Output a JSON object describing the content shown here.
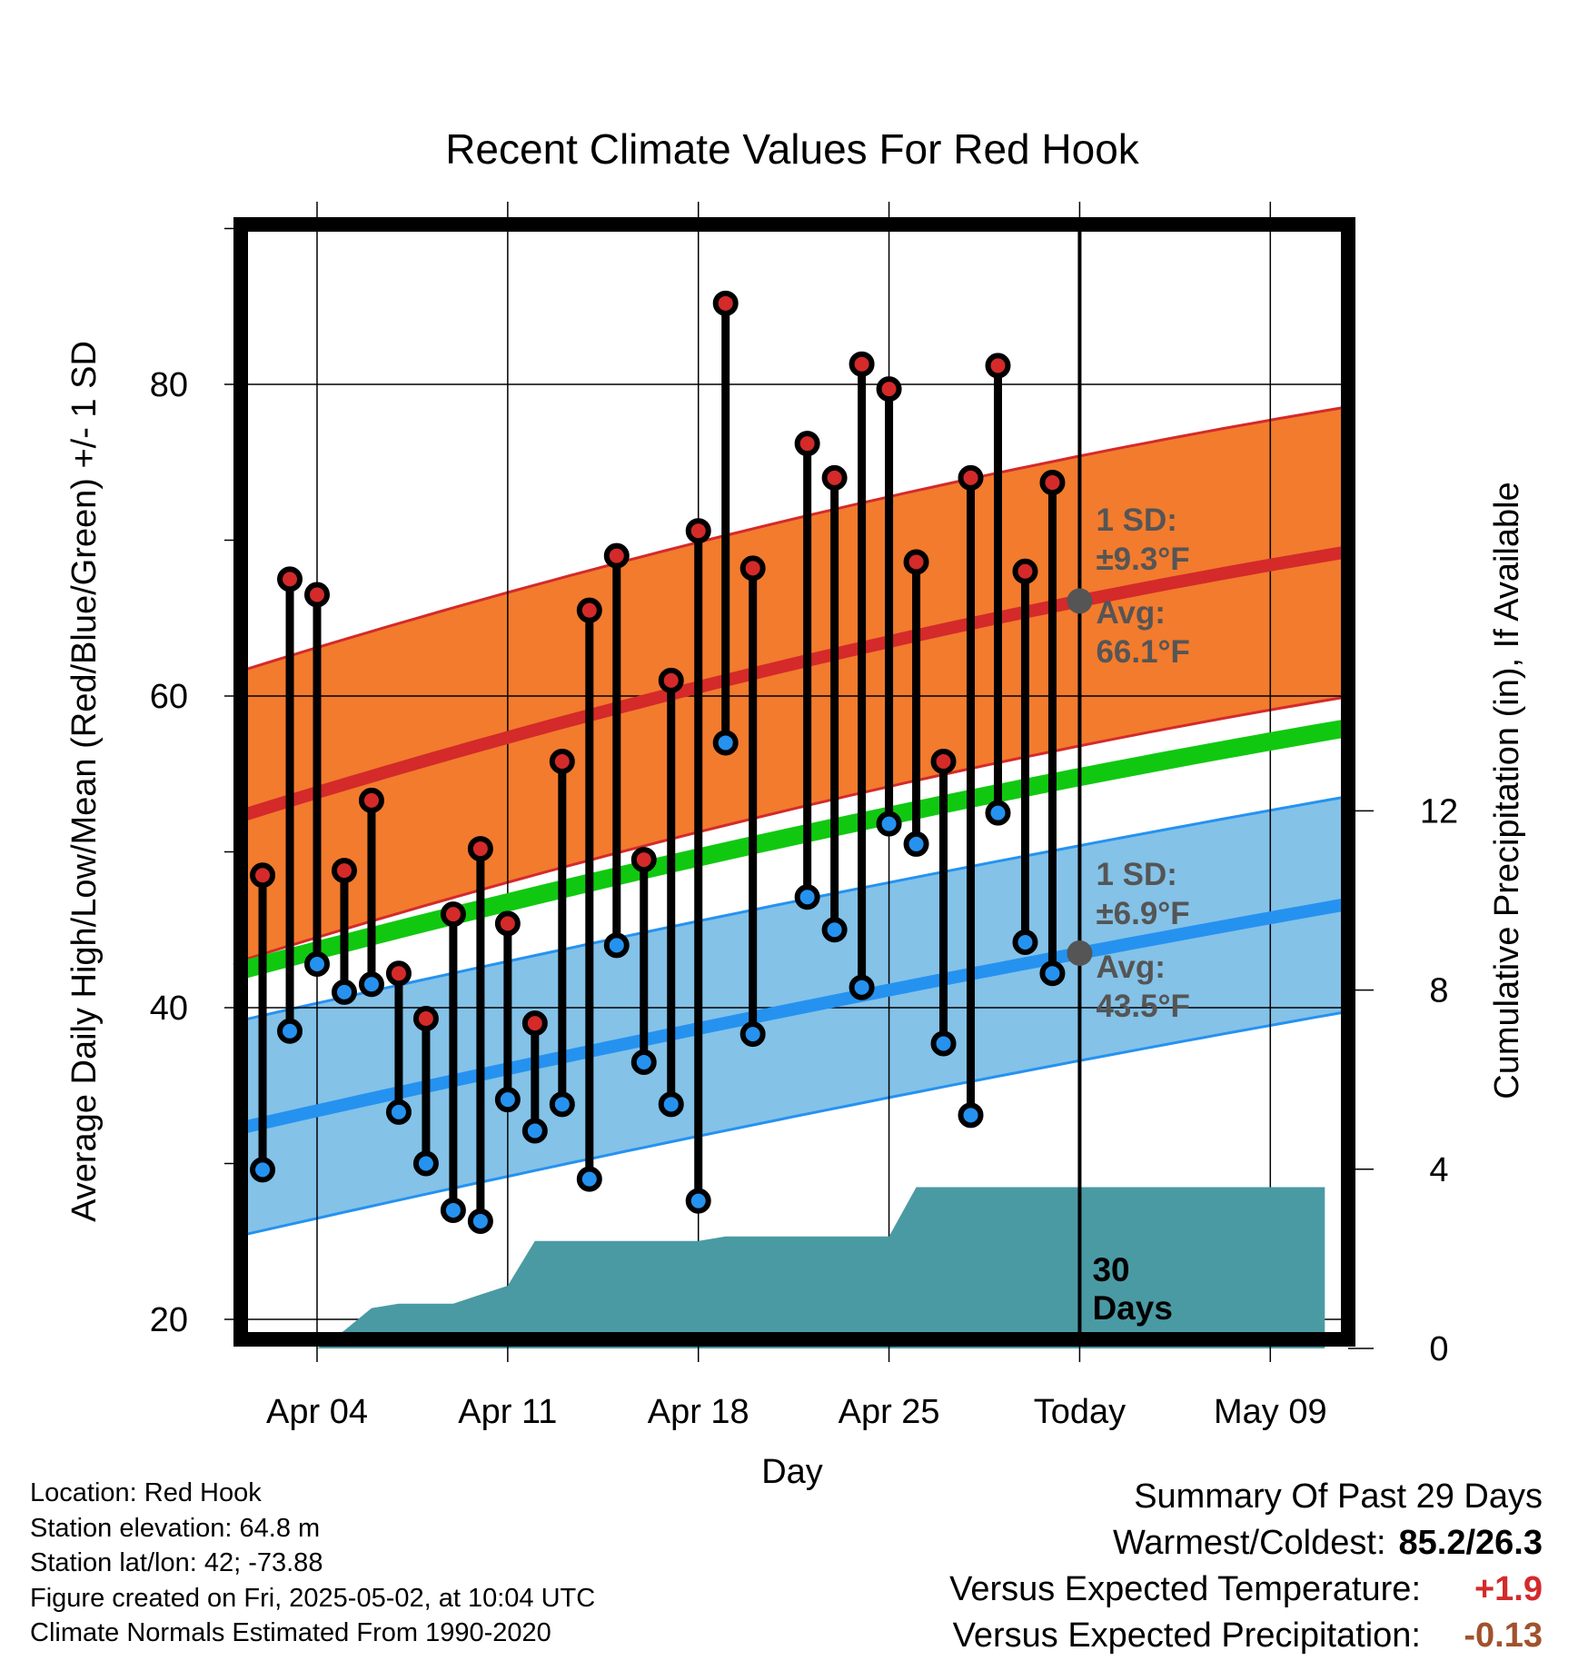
{
  "chart_data": {
    "type": "line",
    "title": "Recent Climate Values For Red Hook",
    "xlabel": "Day",
    "ylabel": "Average Daily High/Low/Mean (Red/Blue/Green) +/- 1 SD",
    "y2label": "Cumulative Precipitation (in), If Available",
    "ylim": [
      18,
      90
    ],
    "y2lim": [
      0,
      25
    ],
    "y_ticks": [
      20,
      40,
      60,
      80
    ],
    "y2_ticks": [
      0,
      4,
      8,
      12
    ],
    "x_ticks": [
      {
        "day": 4,
        "label": "Apr 04"
      },
      {
        "day": 11,
        "label": "Apr 11"
      },
      {
        "day": 18,
        "label": "Apr 18"
      },
      {
        "day": 25,
        "label": "Apr 25"
      },
      {
        "day": 32,
        "label": "Today"
      },
      {
        "day": 39,
        "label": "May 09"
      }
    ],
    "x_range": [
      1,
      42
    ],
    "grid": true,
    "today_day": 32,
    "today_label": [
      "30",
      "Days"
    ],
    "normals": {
      "high_avg": {
        "start": 52.2,
        "today": 66.1,
        "end": 69.3
      },
      "high_sd": 9.3,
      "low_avg": {
        "start": 32.2,
        "today": 43.5,
        "end": 46.7
      },
      "low_sd": 6.9,
      "mean_avg": {
        "start": 42.3,
        "today": 54.8,
        "end": 58.0
      }
    },
    "annotations": {
      "high": {
        "sd_title": "1 SD:",
        "sd_value": "±9.3°F",
        "avg_title": "Avg:",
        "avg_value": "66.1°F"
      },
      "low": {
        "sd_title": "1 SD:",
        "sd_value": "±6.9°F",
        "avg_title": "Avg:",
        "avg_value": "43.5°F"
      }
    },
    "daily": {
      "days": [
        2,
        3,
        4,
        5,
        6,
        7,
        8,
        9,
        10,
        11,
        12,
        13,
        14,
        15,
        16,
        17,
        18,
        19,
        20,
        22,
        23,
        24,
        25,
        26,
        27,
        28,
        29,
        30,
        31
      ],
      "highs": [
        48.5,
        67.5,
        66.5,
        48.8,
        53.3,
        42.2,
        39.3,
        46.0,
        50.2,
        45.4,
        39.0,
        55.8,
        65.5,
        69.0,
        49.5,
        61.0,
        70.6,
        85.2,
        68.2,
        76.2,
        74.0,
        81.3,
        79.7,
        68.6,
        55.8,
        74.0,
        81.2,
        68.0,
        73.7
      ],
      "lows": [
        29.6,
        38.5,
        42.8,
        41.0,
        41.5,
        33.3,
        30.0,
        27.0,
        26.3,
        34.1,
        32.1,
        33.8,
        29.0,
        44.0,
        36.5,
        33.8,
        27.6,
        57.0,
        38.3,
        47.1,
        45.0,
        41.3,
        51.8,
        50.5,
        37.7,
        33.1,
        52.5,
        44.2,
        42.2
      ]
    },
    "precip": {
      "days": [
        1,
        4,
        5,
        6,
        7,
        8,
        9,
        10,
        11,
        12,
        13,
        14,
        15,
        16,
        17,
        18,
        19,
        20,
        25,
        26,
        27,
        41
      ],
      "values": [
        0,
        0,
        0.4,
        0.9,
        1.0,
        1.0,
        1.0,
        1.2,
        1.4,
        2.4,
        2.4,
        2.4,
        2.4,
        2.4,
        2.4,
        2.4,
        2.5,
        2.5,
        2.5,
        3.6,
        3.6,
        3.6
      ]
    },
    "colors": {
      "high_band": "#f27b2e",
      "high_line": "#d42a2a",
      "low_band": "#84c2e8",
      "low_line": "#2592f0",
      "mean_line": "#11c811",
      "precip": "#4a9aa4",
      "high_dot": "#d42a2a",
      "low_dot": "#2592f0",
      "annotation": "#555555"
    }
  },
  "info": {
    "location": "Location: Red Hook",
    "elevation": "Station elevation: 64.8 m",
    "latlon": "Station lat/lon: 42; -73.88",
    "created": "Figure created on Fri, 2025-05-02, at 10:04 UTC",
    "normals": "Climate Normals Estimated From 1990-2020"
  },
  "summary": {
    "heading": "Summary Of Past 29 Days",
    "warm_cold_label": "Warmest/Coldest:",
    "warm_cold_value": "85.2/26.3",
    "temp_label": "Versus Expected Temperature:",
    "temp_value": "+1.9",
    "temp_color": "#d42a2a",
    "precip_label": "Versus Expected Precipitation:",
    "precip_value": "-0.13",
    "precip_color": "#a0522d"
  }
}
